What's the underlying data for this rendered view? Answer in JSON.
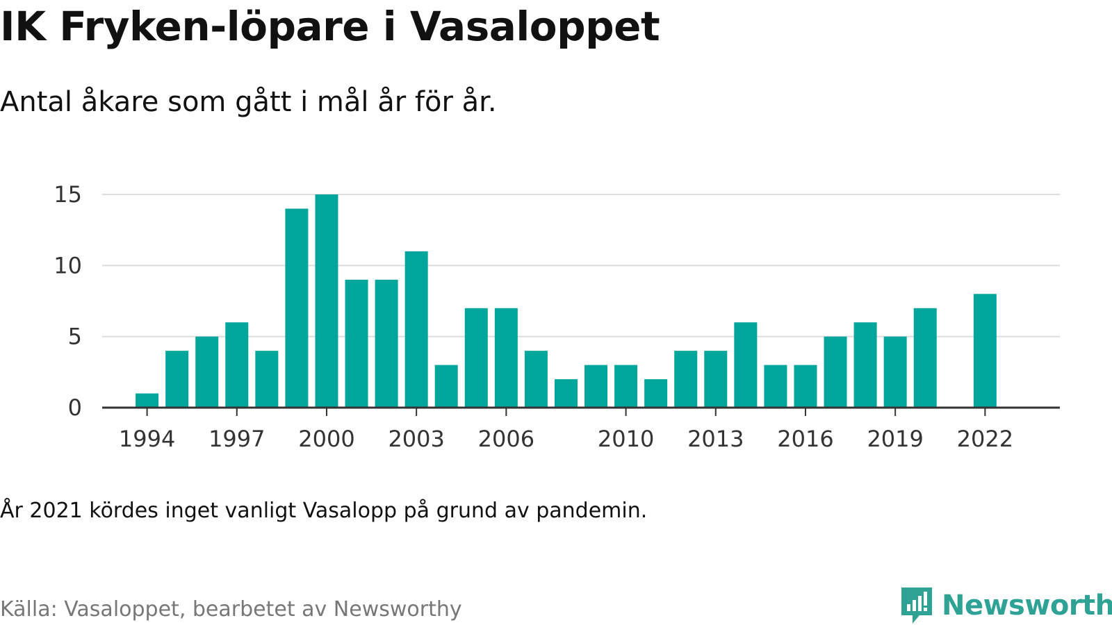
{
  "header": {
    "title": "IK Fryken-löpare i Vasaloppet",
    "subtitle": "Antal åkare som gått i mål år för år."
  },
  "footer": {
    "note": "År 2021 kördes inget vanligt Vasalopp på grund av pandemin.",
    "source": "Källa: Vasaloppet, bearbetet av Newsworthy",
    "brand": "Newsworthy",
    "brand_icon": "newsworthy-logo-icon"
  },
  "colors": {
    "bar": "#00a69b",
    "grid": "#dddddd",
    "axis": "#333333",
    "brand": "#2fa296"
  },
  "chart_data": {
    "type": "bar",
    "x": [
      1994,
      1995,
      1996,
      1997,
      1998,
      1999,
      2000,
      2001,
      2002,
      2003,
      2004,
      2005,
      2006,
      2007,
      2008,
      2009,
      2010,
      2011,
      2012,
      2013,
      2014,
      2015,
      2016,
      2017,
      2018,
      2019,
      2020,
      2022
    ],
    "values": [
      1,
      4,
      5,
      6,
      4,
      14,
      15,
      9,
      9,
      11,
      3,
      7,
      7,
      4,
      2,
      3,
      3,
      2,
      4,
      4,
      6,
      3,
      3,
      5,
      6,
      5,
      7,
      8
    ],
    "xticks": [
      1994,
      1997,
      2000,
      2003,
      2006,
      2010,
      2013,
      2016,
      2019,
      2022
    ],
    "yticks": [
      0,
      5,
      10,
      15
    ],
    "ylim": [
      0,
      15
    ],
    "xlim": [
      1992.5,
      2024.5
    ],
    "grid": true,
    "legend": "none"
  }
}
